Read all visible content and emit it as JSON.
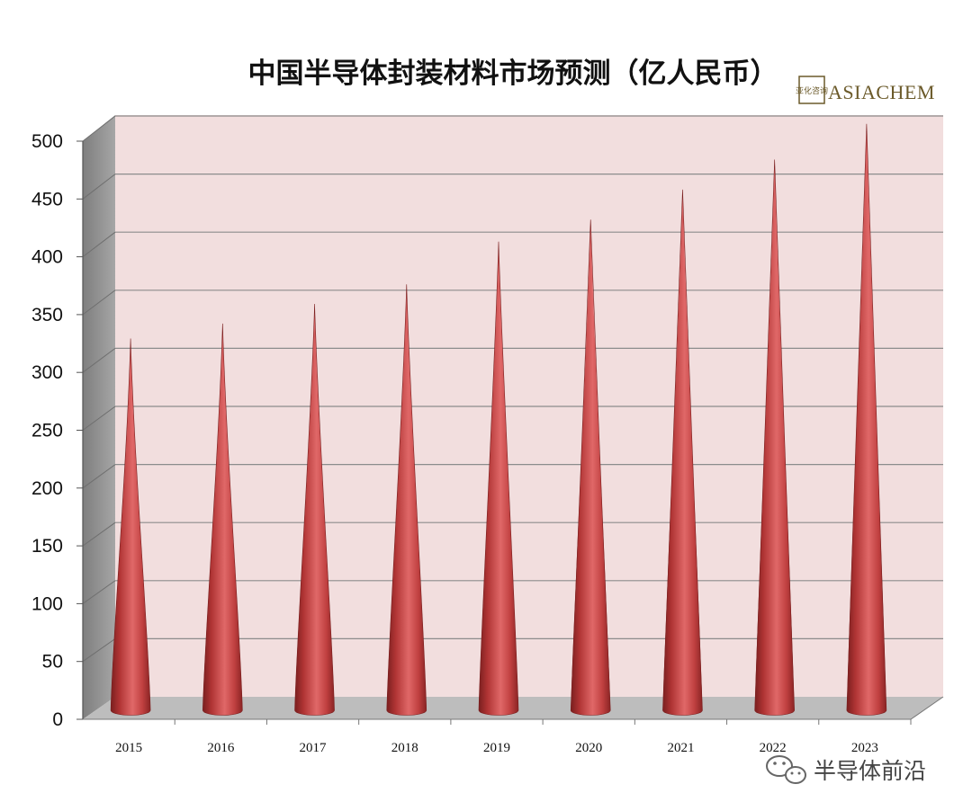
{
  "chart_data": {
    "type": "bar",
    "title": "中国半导体封装材料市场预测（亿人民币）",
    "categories": [
      "2015",
      "2016",
      "2017",
      "2018",
      "2019",
      "2020",
      "2021",
      "2022",
      "2023"
    ],
    "values": [
      322,
      335,
      352,
      369,
      406,
      425,
      451,
      477,
      508
    ],
    "ylim": [
      0,
      500
    ],
    "yticks": [
      "0",
      "50",
      "100",
      "150",
      "200",
      "250",
      "300",
      "350",
      "400",
      "450",
      "500"
    ],
    "bar_shape": "cone",
    "grid": true,
    "colors": {
      "bar": "#c8423f",
      "plot_back": "#f2dede",
      "side_wall": "#8d8d8d",
      "floor": "#b9b9b9"
    }
  },
  "logo": {
    "text": "ASIACHEM",
    "seal_text": "亚化咨询"
  },
  "watermark": {
    "text": "半导体前沿",
    "icon": "wechat-icon"
  }
}
